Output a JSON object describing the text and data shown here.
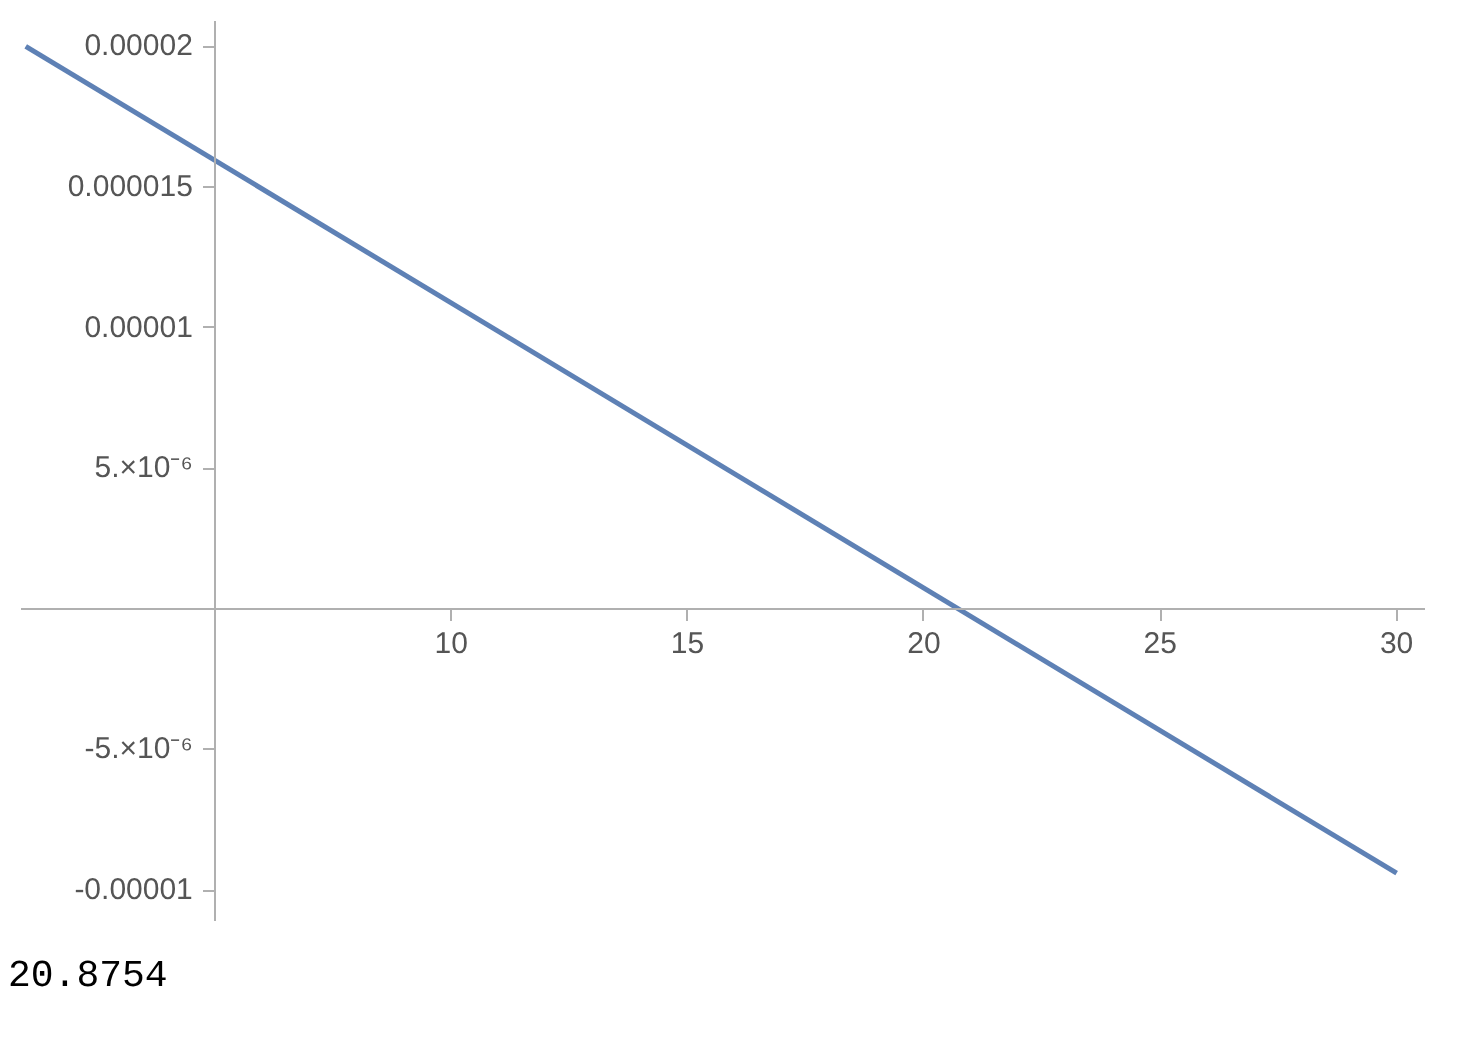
{
  "chart_data": {
    "type": "line",
    "x": [
      1,
      30
    ],
    "values": [
      2e-05,
      -9.4e-06
    ],
    "color": "#5e81b5",
    "xlim": [
      0.9,
      30.6
    ],
    "ylim": [
      -1.11e-05,
      2.09e-05
    ],
    "xticks": [
      10,
      15,
      20,
      25,
      30
    ],
    "yticks": [
      {
        "value": 2e-05,
        "label": "0.00002"
      },
      {
        "value": 1.5e-05,
        "label": "0.000015"
      },
      {
        "value": 1e-05,
        "label": "0.00001"
      },
      {
        "value": 5e-06,
        "label": "5.×10⁻⁶"
      },
      {
        "value": -5e-06,
        "label": "-5.×10⁻⁶"
      },
      {
        "value": -1e-05,
        "label": "-0.00001"
      }
    ],
    "grid": false,
    "marker": "none",
    "line_style": "solid",
    "annotations": [
      "20.8754"
    ]
  }
}
